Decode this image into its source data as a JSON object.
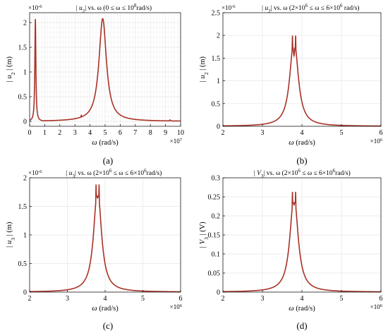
{
  "figure": {
    "captions": [
      "(a)",
      "(b)",
      "(c)",
      "(d)"
    ]
  },
  "colors": {
    "line": "#a83226",
    "grid": "#e6e6e6",
    "grid_minor": "#f0eef0",
    "axis": "#000000"
  },
  "chart_data": [
    {
      "type": "line",
      "title": "|u2| vs. ω (0 ≤ ω ≤ 10^8 rad/s)",
      "title_parts": {
        "a": "| u",
        "sub": "2",
        "b": "| vs. ω (0 ≤ ω ≤ 10",
        "sup": "8",
        "c": "rad/s)"
      },
      "xlabel": "ω (rad/s)",
      "ylabel": "| u2 | (m)",
      "ylabel_parts": {
        "a": "| u",
        "sub": "2",
        "b": "| (m)"
      },
      "x_multiplier": "×10^7",
      "x_mult_parts": {
        "base": "×10",
        "sup": "7"
      },
      "y_multiplier": "×10^-6",
      "y_mult_parts": {
        "base": "×10",
        "sup": "-6"
      },
      "xlim": [
        0,
        10
      ],
      "ylim": [
        -0.1,
        2.2
      ],
      "xticks": [
        "0",
        "1",
        "2",
        "3",
        "4",
        "5",
        "6",
        "7",
        "8",
        "9",
        "10"
      ],
      "yticks": [
        "0",
        "0.5",
        "1",
        "1.5",
        "2"
      ],
      "minor_grid": true,
      "peaks": [
        {
          "x": 0.38,
          "y": 2.08
        },
        {
          "x": 3.42,
          "y": 0.12
        },
        {
          "x": 9.3,
          "y": 0.03
        }
      ]
    },
    {
      "type": "line",
      "title": "|u2| vs. ω (2×10^6 ≤ ω ≤ 6×10^6 rad/s)",
      "title_parts": {
        "a": "| u",
        "sub": "2",
        "b": "| vs. ω (2×10",
        "sup1": "6",
        "c": " ≤ ω ≤ 6×10",
        "sup2": "6",
        "d": " rad/s)"
      },
      "xlabel": "ω (rad/s)",
      "ylabel": "| u2 | (m)",
      "ylabel_parts": {
        "a": "| u",
        "sub": "2",
        "b": "| (m)"
      },
      "x_multiplier": "×10^6",
      "x_mult_parts": {
        "base": "×10",
        "sup": "6"
      },
      "y_multiplier": "×10^-6",
      "y_mult_parts": {
        "base": "×10",
        "sup": "-6"
      },
      "xlim": [
        2,
        6
      ],
      "ylim": [
        0,
        2.5
      ],
      "xticks": [
        "2",
        "3",
        "4",
        "5",
        "6"
      ],
      "yticks": [
        "0",
        "0.5",
        "1",
        "1.5",
        "2",
        "2.5"
      ],
      "minor_grid": false,
      "peaks": [
        {
          "x": 3.76,
          "y": 2.05
        },
        {
          "x": 3.84,
          "y": 2.05
        }
      ],
      "notch": {
        "x": 3.8,
        "y": 1.5
      }
    },
    {
      "type": "line",
      "title": "|u3| vs. ω (2×10^6 ≤ ω ≤ 6×10^6 rad/s)",
      "title_parts": {
        "a": "| u",
        "sub": "3",
        "b": "| vs. ω (2×10",
        "sup1": "6",
        "c": " ≤ ω ≤ 6×10",
        "sup2": "6",
        "d": "rad/s)"
      },
      "xlabel": "ω (rad/s)",
      "ylabel": "| u3 | (m)",
      "ylabel_parts": {
        "a": "| u",
        "sub": "3",
        "b": "| (m)"
      },
      "x_multiplier": "×10^6",
      "x_mult_parts": {
        "base": "×10",
        "sup": "6"
      },
      "y_multiplier": "×10^-6",
      "y_mult_parts": {
        "base": "×10",
        "sup": "-6"
      },
      "xlim": [
        2,
        6
      ],
      "ylim": [
        0,
        2
      ],
      "xticks": [
        "2",
        "3",
        "4",
        "5",
        "6"
      ],
      "yticks": [
        "0",
        "0.5",
        "1",
        "1.5",
        "2"
      ],
      "minor_grid": false,
      "peaks": [
        {
          "x": 3.76,
          "y": 1.87
        },
        {
          "x": 3.84,
          "y": 1.87
        }
      ],
      "notch": {
        "x": 3.8,
        "y": 1.62
      }
    },
    {
      "type": "line",
      "title": "|V3| vs. ω (2×10^6 ≤ ω ≤ 6×10^6 rad/s)",
      "title_parts": {
        "a": "| V",
        "sub": "3",
        "b": "| vs. ω (2×10",
        "sup1": "6",
        "c": " ≤ ω ≤ 6×10",
        "sup2": "6",
        "d": "rad/s)"
      },
      "xlabel": "ω (rad/s)",
      "ylabel": "| V3 | (V)",
      "ylabel_parts": {
        "a": "| V",
        "sub": "3",
        "b": "| (V)"
      },
      "x_multiplier": "×10^6",
      "x_mult_parts": {
        "base": "×10",
        "sup": "6"
      },
      "y_multiplier": "",
      "xlim": [
        2,
        6
      ],
      "ylim": [
        0,
        0.3
      ],
      "xticks": [
        "2",
        "3",
        "4",
        "5",
        "6"
      ],
      "yticks": [
        "0",
        "0.05",
        "0.1",
        "0.15",
        "0.2",
        "0.25",
        "0.3"
      ],
      "minor_grid": false,
      "peaks": [
        {
          "x": 3.76,
          "y": 0.262
        },
        {
          "x": 3.84,
          "y": 0.262
        }
      ],
      "notch": {
        "x": 3.8,
        "y": 0.225
      }
    }
  ]
}
